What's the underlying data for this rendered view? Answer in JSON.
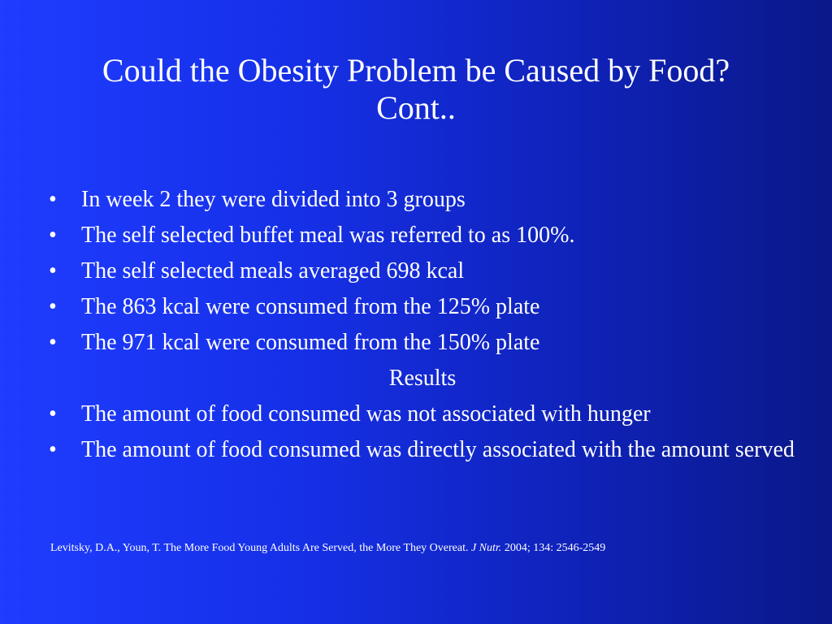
{
  "slide": {
    "title_line1": "Could the Obesity Problem be Caused by Food?",
    "title_line2": "Cont..",
    "bullets_top": [
      "In week 2 they were divided into 3 groups",
      "The self selected buffet meal was referred to as 100%.",
      "The self selected meals averaged 698 kcal",
      "The 863 kcal were consumed from the 125% plate",
      "The 971 kcal were consumed from the 150% plate"
    ],
    "results_heading": "Results",
    "bullets_results": [
      "The amount of food consumed was not associated with hunger",
      "The amount of food consumed was directly associated with the amount served"
    ],
    "bullet_glyph": "•",
    "citation": {
      "text": "Levitsky, D.A., Youn, T. The More Food Young Adults Are Served, the More They Overeat.",
      "journal": "J Nutr.",
      "details": "2004; 134: 2546-2549"
    }
  }
}
